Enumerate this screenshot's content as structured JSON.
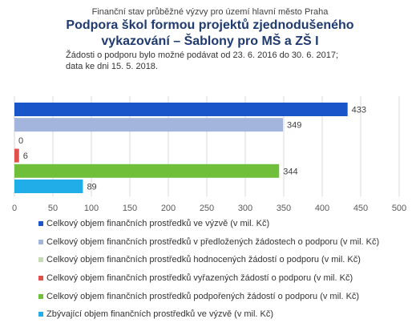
{
  "chart_data": {
    "type": "bar",
    "orientation": "horizontal",
    "supertitle": "Finanční stav průběžné výzvy pro území hlavní město Praha",
    "title_line1": "Podpora škol formou projektů zjednodušeného",
    "title_line2": "vykazování – Šablony pro MŠ a ZŠ I",
    "subtitle_line1": "Žádosti o podporu bylo možné podávat od 23. 6. 2016 do 30. 6. 2017;",
    "subtitle_line2": "data ke dni 15. 5. 2018.",
    "xlim": [
      0,
      500
    ],
    "xticks": [
      "0",
      "50",
      "100",
      "150",
      "200",
      "250",
      "300",
      "350",
      "400",
      "450",
      "500"
    ],
    "grid": true,
    "legend_placement": "bottom",
    "series": [
      {
        "name": "Celkový objem finančních prostředků ve výzvě (v mil. Kč)",
        "value": 433,
        "label": "433",
        "color": "#1a56c9"
      },
      {
        "name": "Celkový objem finančních prostředků v předložených žádostech o podporu (v mil. Kč)",
        "value": 349,
        "label": "349",
        "color": "#a3b4dd"
      },
      {
        "name": "Celkový objem finančních prostředků hodnocených žádostí o podporu (v mil. Kč)",
        "value": 0,
        "label": "0",
        "color": "#c6dbb4"
      },
      {
        "name": "Celkový objem finančních prostředků vyřazených žádostí o podporu (v mil. Kč)",
        "value": 6,
        "label": "6",
        "color": "#e0514e"
      },
      {
        "name": "Celkový objem finančních prostředků podpořených žádostí o podporu (v mil. Kč)",
        "value": 344,
        "label": "344",
        "color": "#6fbf3b"
      },
      {
        "name": "Zbývající objem finančních prostředků ve výzvě (v mil. Kč)",
        "value": 89,
        "label": "89",
        "color": "#21aee8"
      }
    ]
  }
}
